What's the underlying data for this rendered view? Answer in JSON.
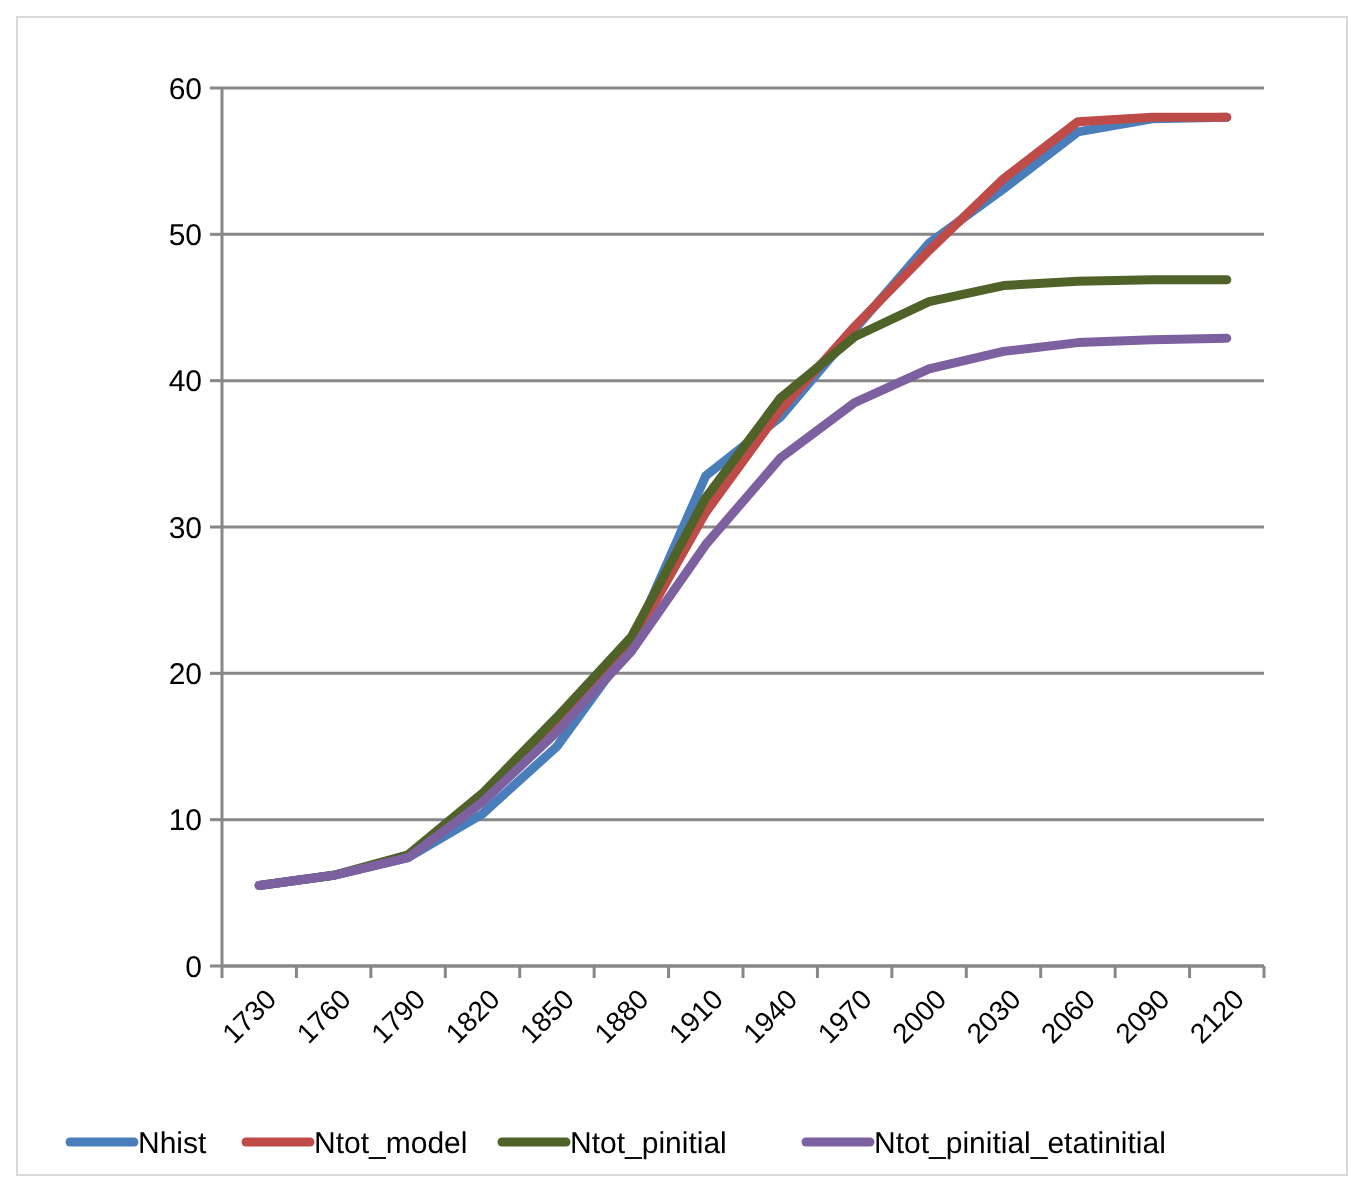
{
  "chart_data": {
    "type": "line",
    "categories": [
      "1730",
      "1760",
      "1790",
      "1820",
      "1850",
      "1880",
      "1910",
      "1940",
      "1970",
      "2000",
      "2030",
      "2060",
      "2090",
      "2120"
    ],
    "series": [
      {
        "name": "Nhist",
        "color": "#4a7ebb",
        "values": [
          5.5,
          6.2,
          7.4,
          10.4,
          15,
          22,
          33.5,
          37.5,
          43.5,
          49.4,
          53.1,
          57,
          57.9,
          58
        ]
      },
      {
        "name": "Ntot_model",
        "color": "#be4b48",
        "values": [
          null,
          null,
          null,
          11.5,
          16.5,
          22,
          31,
          38,
          43.7,
          48.9,
          53.8,
          57.7,
          58,
          58
        ]
      },
      {
        "name": "Ntot_pinitial",
        "color": "#4f6228",
        "values": [
          5.5,
          6.2,
          7.6,
          11.8,
          17,
          22.5,
          32,
          38.8,
          43,
          45.4,
          46.5,
          46.8,
          46.9,
          46.9
        ]
      },
      {
        "name": "Ntot_pinitial_etatinitial",
        "color": "#7d60a0",
        "values": [
          5.5,
          6.2,
          7.4,
          11.2,
          16,
          21.5,
          28.8,
          34.7,
          38.5,
          40.8,
          42,
          42.6,
          42.8,
          42.9
        ]
      }
    ],
    "ylim": [
      0,
      60
    ],
    "yticks": [
      0,
      10,
      20,
      30,
      40,
      50,
      60
    ],
    "grid": "y",
    "legend": "bottom",
    "marker": "none",
    "line_style": "solid"
  }
}
